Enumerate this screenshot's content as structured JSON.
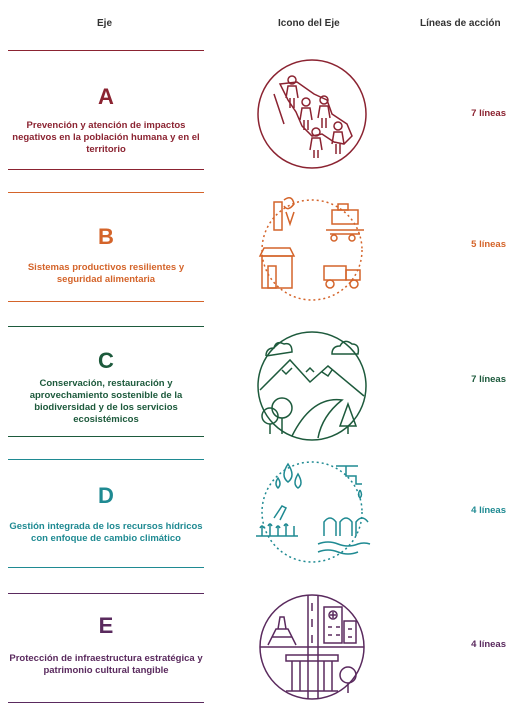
{
  "header": {
    "eje": "Eje",
    "icono": "Icono del Eje",
    "lineas": "Líneas de acción"
  },
  "axes": [
    {
      "letter": "A",
      "title": "Prevención y atención de impactos negativos en la población humana y en el territorio",
      "count": "7 líneas",
      "color": "#8b2331",
      "icon": "mexico-map-people-icon"
    },
    {
      "letter": "B",
      "title": "Sistemas productivos resilientes y seguridad alimentaria",
      "count": "5 líneas",
      "color": "#d4642a",
      "icon": "food-production-icon"
    },
    {
      "letter": "C",
      "title": "Conservación, restauración y aprovechamiento sostenible de la biodiversidad y de los servicios ecosistémicos",
      "count": "7 líneas",
      "color": "#1d5a3c",
      "icon": "mountains-forest-icon"
    },
    {
      "letter": "D",
      "title": "Gestión integrada de los recursos hídricos con enfoque de cambio climático",
      "count": "4 líneas",
      "color": "#1f8a92",
      "icon": "water-resources-icon"
    },
    {
      "letter": "E",
      "title": "Protección de infraestructura estratégica y patrimonio cultural tangible",
      "count": "4 líneas",
      "color": "#5a2a5e",
      "icon": "infrastructure-heritage-icon"
    }
  ]
}
